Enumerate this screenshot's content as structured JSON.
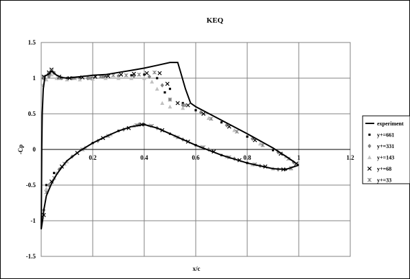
{
  "chart_data": {
    "type": "scatter",
    "title": "KEQ",
    "xlabel": "x/c",
    "ylabel": "-Cp",
    "xlim": [
      0,
      1.2
    ],
    "ylim": [
      -1.5,
      1.5
    ],
    "xticks": [
      "0.2",
      "0.4",
      "0.6",
      "0.8",
      "1",
      "1.2"
    ],
    "yticks": [
      "1.5",
      "1",
      "0.5",
      "0",
      "-0.5",
      "-1",
      "-1.5"
    ],
    "grid": true,
    "legend_position": "right",
    "colors": {
      "experiment": "#000000",
      "y661": "#000000",
      "y331": "#808080",
      "y143": "#c0c0c0",
      "y68": "#000000",
      "y33": "#808080"
    },
    "experiment": {
      "name": "experiment",
      "upper": [
        [
          0.0,
          -1.12
        ],
        [
          0.001,
          -0.6
        ],
        [
          0.002,
          0.0
        ],
        [
          0.004,
          0.5
        ],
        [
          0.008,
          0.85
        ],
        [
          0.015,
          1.03
        ],
        [
          0.03,
          1.06
        ],
        [
          0.04,
          1.1
        ],
        [
          0.05,
          1.07
        ],
        [
          0.06,
          1.04
        ],
        [
          0.08,
          1.01
        ],
        [
          0.1,
          1.0
        ],
        [
          0.15,
          1.02
        ],
        [
          0.2,
          1.04
        ],
        [
          0.25,
          1.05
        ],
        [
          0.3,
          1.08
        ],
        [
          0.35,
          1.11
        ],
        [
          0.4,
          1.14
        ],
        [
          0.45,
          1.18
        ],
        [
          0.5,
          1.22
        ],
        [
          0.53,
          1.22
        ],
        [
          0.54,
          1.1
        ],
        [
          0.56,
          0.85
        ],
        [
          0.58,
          0.65
        ],
        [
          0.6,
          0.6
        ],
        [
          0.7,
          0.41
        ],
        [
          0.8,
          0.22
        ],
        [
          0.9,
          0.02
        ],
        [
          0.96,
          -0.12
        ],
        [
          1.0,
          -0.22
        ]
      ],
      "lower": [
        [
          0.0,
          -1.12
        ],
        [
          0.005,
          -1.0
        ],
        [
          0.01,
          -0.85
        ],
        [
          0.02,
          -0.65
        ],
        [
          0.04,
          -0.48
        ],
        [
          0.06,
          -0.35
        ],
        [
          0.08,
          -0.25
        ],
        [
          0.1,
          -0.16
        ],
        [
          0.15,
          -0.02
        ],
        [
          0.2,
          0.09
        ],
        [
          0.25,
          0.18
        ],
        [
          0.3,
          0.26
        ],
        [
          0.35,
          0.32
        ],
        [
          0.4,
          0.35
        ],
        [
          0.45,
          0.3
        ],
        [
          0.5,
          0.22
        ],
        [
          0.6,
          0.06
        ],
        [
          0.7,
          -0.08
        ],
        [
          0.8,
          -0.19
        ],
        [
          0.9,
          -0.27
        ],
        [
          0.95,
          -0.28
        ],
        [
          1.0,
          -0.22
        ]
      ]
    },
    "series": [
      {
        "name": "y+=661",
        "marker": "square",
        "color": "#000000",
        "points": [
          [
            0.01,
            1.02
          ],
          [
            0.03,
            1.04
          ],
          [
            0.05,
            1.08
          ],
          [
            0.08,
            1.0
          ],
          [
            0.1,
            1.0
          ],
          [
            0.15,
            1.0
          ],
          [
            0.2,
            1.0
          ],
          [
            0.25,
            1.02
          ],
          [
            0.3,
            1.03
          ],
          [
            0.35,
            1.04
          ],
          [
            0.4,
            1.05
          ],
          [
            0.45,
            1.0
          ],
          [
            0.48,
            0.8
          ],
          [
            0.5,
            0.85
          ],
          [
            0.55,
            0.65
          ],
          [
            0.6,
            0.55
          ],
          [
            0.7,
            0.38
          ],
          [
            0.8,
            0.18
          ],
          [
            0.9,
            -0.01
          ],
          [
            0.98,
            -0.18
          ],
          [
            0.02,
            -0.5
          ],
          [
            0.05,
            -0.33
          ],
          [
            0.1,
            -0.17
          ],
          [
            0.2,
            0.09
          ],
          [
            0.3,
            0.26
          ],
          [
            0.4,
            0.35
          ],
          [
            0.5,
            0.22
          ],
          [
            0.6,
            0.06
          ],
          [
            0.7,
            -0.08
          ],
          [
            0.8,
            -0.19
          ],
          [
            0.9,
            -0.27
          ],
          [
            0.95,
            -0.28
          ]
        ]
      },
      {
        "name": "y+=331",
        "marker": "diamond",
        "color": "#808080",
        "points": [
          [
            0.01,
            1.0
          ],
          [
            0.03,
            1.02
          ],
          [
            0.05,
            1.07
          ],
          [
            0.08,
            1.0
          ],
          [
            0.12,
            1.0
          ],
          [
            0.18,
            1.0
          ],
          [
            0.24,
            1.02
          ],
          [
            0.3,
            1.03
          ],
          [
            0.36,
            1.03
          ],
          [
            0.42,
            1.02
          ],
          [
            0.47,
            0.9
          ],
          [
            0.5,
            0.7
          ],
          [
            0.55,
            0.62
          ],
          [
            0.62,
            0.52
          ],
          [
            0.72,
            0.34
          ],
          [
            0.82,
            0.15
          ],
          [
            0.92,
            -0.04
          ],
          [
            0.98,
            -0.18
          ],
          [
            0.01,
            -0.85
          ],
          [
            0.03,
            -0.5
          ],
          [
            0.07,
            -0.28
          ],
          [
            0.12,
            -0.1
          ],
          [
            0.22,
            0.12
          ],
          [
            0.32,
            0.28
          ],
          [
            0.38,
            0.35
          ],
          [
            0.45,
            0.3
          ],
          [
            0.55,
            0.14
          ],
          [
            0.65,
            0.0
          ],
          [
            0.75,
            -0.13
          ],
          [
            0.85,
            -0.23
          ],
          [
            0.92,
            -0.28
          ]
        ]
      },
      {
        "name": "y+=143",
        "marker": "triangle",
        "color": "#c0c0c0",
        "points": [
          [
            0.005,
            0.9
          ],
          [
            0.02,
            0.98
          ],
          [
            0.04,
            1.05
          ],
          [
            0.06,
            1.0
          ],
          [
            0.1,
            0.98
          ],
          [
            0.15,
            0.98
          ],
          [
            0.2,
            0.99
          ],
          [
            0.25,
            1.0
          ],
          [
            0.3,
            1.0
          ],
          [
            0.35,
            1.0
          ],
          [
            0.4,
            1.0
          ],
          [
            0.43,
            0.95
          ],
          [
            0.45,
            0.85
          ],
          [
            0.47,
            0.65
          ],
          [
            0.5,
            0.6
          ],
          [
            0.55,
            0.58
          ],
          [
            0.65,
            0.44
          ],
          [
            0.75,
            0.27
          ],
          [
            0.85,
            0.08
          ],
          [
            0.95,
            -0.1
          ],
          [
            0.005,
            -0.95
          ],
          [
            0.02,
            -0.55
          ],
          [
            0.06,
            -0.33
          ],
          [
            0.1,
            -0.17
          ],
          [
            0.17,
            0.03
          ],
          [
            0.27,
            0.21
          ],
          [
            0.36,
            0.33
          ],
          [
            0.42,
            0.34
          ],
          [
            0.52,
            0.19
          ],
          [
            0.62,
            0.04
          ],
          [
            0.72,
            -0.1
          ],
          [
            0.82,
            -0.21
          ],
          [
            0.9,
            -0.27
          ],
          [
            0.97,
            -0.27
          ]
        ]
      },
      {
        "name": "y+=68",
        "marker": "x",
        "color": "#000000",
        "points": [
          [
            0.01,
            1.02
          ],
          [
            0.03,
            1.08
          ],
          [
            0.04,
            1.12
          ],
          [
            0.07,
            1.02
          ],
          [
            0.11,
            1.0
          ],
          [
            0.16,
            1.01
          ],
          [
            0.21,
            1.02
          ],
          [
            0.26,
            1.03
          ],
          [
            0.31,
            1.05
          ],
          [
            0.36,
            1.06
          ],
          [
            0.41,
            1.07
          ],
          [
            0.46,
            1.07
          ],
          [
            0.49,
            0.92
          ],
          [
            0.53,
            0.65
          ],
          [
            0.57,
            0.62
          ],
          [
            0.63,
            0.5
          ],
          [
            0.73,
            0.32
          ],
          [
            0.83,
            0.13
          ],
          [
            0.93,
            -0.06
          ],
          [
            0.99,
            -0.2
          ],
          [
            0.01,
            -0.92
          ],
          [
            0.04,
            -0.45
          ],
          [
            0.08,
            -0.24
          ],
          [
            0.14,
            -0.05
          ],
          [
            0.24,
            0.16
          ],
          [
            0.34,
            0.3
          ],
          [
            0.39,
            0.35
          ],
          [
            0.47,
            0.27
          ],
          [
            0.57,
            0.11
          ],
          [
            0.67,
            -0.03
          ],
          [
            0.77,
            -0.15
          ],
          [
            0.87,
            -0.24
          ],
          [
            0.94,
            -0.28
          ]
        ]
      },
      {
        "name": "y+=33",
        "marker": "star",
        "color": "#808080",
        "points": [
          [
            0.01,
            1.0
          ],
          [
            0.03,
            1.06
          ],
          [
            0.04,
            1.1
          ],
          [
            0.07,
            1.0
          ],
          [
            0.13,
            1.0
          ],
          [
            0.19,
            1.0
          ],
          [
            0.23,
            1.02
          ],
          [
            0.28,
            1.04
          ],
          [
            0.33,
            1.04
          ],
          [
            0.38,
            1.05
          ],
          [
            0.44,
            1.08
          ],
          [
            0.5,
            0.7
          ],
          [
            0.56,
            0.62
          ],
          [
            0.66,
            0.43
          ],
          [
            0.76,
            0.25
          ],
          [
            0.86,
            0.06
          ],
          [
            0.96,
            -0.13
          ],
          [
            0.02,
            -0.6
          ],
          [
            0.05,
            -0.4
          ],
          [
            0.09,
            -0.2
          ],
          [
            0.16,
            0.0
          ],
          [
            0.26,
            0.19
          ],
          [
            0.37,
            0.34
          ],
          [
            0.43,
            0.33
          ],
          [
            0.53,
            0.17
          ],
          [
            0.63,
            0.03
          ],
          [
            0.73,
            -0.11
          ],
          [
            0.83,
            -0.21
          ],
          [
            0.97,
            -0.26
          ]
        ]
      }
    ]
  }
}
